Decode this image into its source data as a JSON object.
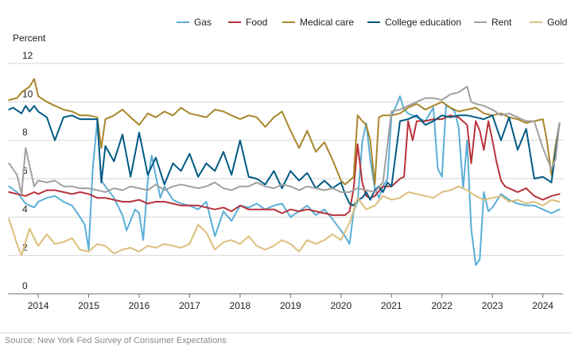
{
  "chart_data": {
    "type": "line",
    "ylabel": "Percent",
    "ylim": [
      0,
      12
    ],
    "yticks": [
      0,
      2,
      4,
      6,
      8,
      10,
      12
    ],
    "xlim": [
      2013.4,
      2024.4
    ],
    "xticks": [
      2014,
      2015,
      2016,
      2017,
      2018,
      2019,
      2020,
      2021,
      2022,
      2023,
      2024
    ],
    "xtick_labels": [
      "2014",
      "2015",
      "2016",
      "2017",
      "2018",
      "2019",
      "2020",
      "2021",
      "2022",
      "2023",
      "2024"
    ],
    "grid": "horizontal",
    "legend_position": "top-right",
    "source": "Source: New York Fed Survey of Consumer Expectations",
    "series": [
      {
        "name": "Gas",
        "color": "#5aaed6",
        "x": [
          2013.42,
          2013.58,
          2013.75,
          2013.92,
          2014.0,
          2014.17,
          2014.33,
          2014.5,
          2014.67,
          2014.83,
          2014.92,
          2015.0,
          2015.08,
          2015.17,
          2015.25,
          2015.33,
          2015.5,
          2015.67,
          2015.75,
          2015.92,
          2016.0,
          2016.08,
          2016.17,
          2016.25,
          2016.42,
          2016.5,
          2016.67,
          2016.83,
          2017.0,
          2017.17,
          2017.33,
          2017.5,
          2017.67,
          2017.83,
          2018.0,
          2018.17,
          2018.33,
          2018.5,
          2018.67,
          2018.83,
          2019.0,
          2019.17,
          2019.33,
          2019.5,
          2019.67,
          2019.83,
          2020.0,
          2020.08,
          2020.17,
          2020.25,
          2020.33,
          2020.42,
          2020.5,
          2020.58,
          2020.67,
          2020.75,
          2020.83,
          2020.92,
          2021.0,
          2021.08,
          2021.17,
          2021.25,
          2021.33,
          2021.5,
          2021.67,
          2021.83,
          2021.92,
          2022.0,
          2022.08,
          2022.17,
          2022.25,
          2022.33,
          2022.42,
          2022.5,
          2022.58,
          2022.67,
          2022.75,
          2022.83,
          2022.92,
          2023.0,
          2023.17,
          2023.33,
          2023.5,
          2023.67,
          2023.83,
          2024.0,
          2024.17,
          2024.33
        ],
        "values": [
          5.6,
          5.3,
          4.7,
          4.5,
          4.8,
          5.0,
          5.1,
          4.8,
          4.6,
          4.0,
          3.6,
          2.3,
          6.5,
          9.0,
          5.9,
          5.6,
          5.0,
          4.1,
          3.3,
          4.4,
          4.2,
          2.8,
          5.9,
          7.2,
          5.0,
          5.6,
          4.9,
          4.7,
          4.6,
          4.4,
          4.8,
          3.0,
          4.3,
          3.8,
          4.6,
          4.5,
          4.7,
          4.4,
          4.6,
          4.7,
          4.0,
          4.3,
          4.6,
          4.1,
          4.4,
          3.9,
          3.3,
          3.0,
          2.6,
          4.3,
          4.8,
          7.9,
          8.9,
          7.0,
          5.5,
          5.0,
          5.6,
          6.0,
          9.3,
          9.7,
          10.3,
          9.6,
          9.4,
          9.2,
          9.0,
          9.7,
          6.5,
          6.1,
          9.8,
          9.7,
          9.5,
          8.7,
          5.5,
          8.0,
          3.4,
          1.5,
          1.8,
          5.3,
          4.3,
          4.5,
          5.2,
          4.9,
          4.7,
          4.6,
          4.6,
          4.4,
          4.2,
          4.4
        ]
      },
      {
        "name": "Food",
        "color": "#b8323a",
        "x": [
          2013.42,
          2013.58,
          2013.75,
          2013.92,
          2014.0,
          2014.17,
          2014.33,
          2014.5,
          2014.67,
          2014.83,
          2015.0,
          2015.17,
          2015.33,
          2015.5,
          2015.67,
          2015.83,
          2016.0,
          2016.17,
          2016.33,
          2016.5,
          2016.67,
          2016.83,
          2017.0,
          2017.17,
          2017.33,
          2017.5,
          2017.67,
          2017.83,
          2018.0,
          2018.17,
          2018.33,
          2018.5,
          2018.67,
          2018.83,
          2019.0,
          2019.17,
          2019.33,
          2019.5,
          2019.67,
          2019.83,
          2020.0,
          2020.08,
          2020.17,
          2020.25,
          2020.33,
          2020.42,
          2020.5,
          2020.58,
          2020.67,
          2020.83,
          2021.0,
          2021.17,
          2021.25,
          2021.33,
          2021.42,
          2021.5,
          2021.67,
          2021.83,
          2022.0,
          2022.17,
          2022.33,
          2022.5,
          2022.58,
          2022.67,
          2022.75,
          2022.83,
          2022.92,
          2023.0,
          2023.08,
          2023.17,
          2023.25,
          2023.33,
          2023.5,
          2023.67,
          2023.83,
          2024.0,
          2024.17,
          2024.33
        ],
        "values": [
          5.3,
          5.2,
          5.1,
          5.3,
          5.2,
          5.4,
          5.4,
          5.3,
          5.2,
          5.3,
          5.2,
          5.0,
          5.0,
          4.9,
          4.8,
          4.8,
          4.9,
          4.7,
          4.8,
          4.8,
          4.7,
          4.6,
          4.6,
          4.6,
          4.5,
          4.4,
          4.5,
          4.3,
          4.6,
          4.4,
          4.4,
          4.4,
          4.4,
          4.2,
          4.4,
          4.3,
          4.4,
          4.3,
          4.2,
          4.1,
          4.1,
          4.1,
          4.3,
          5.5,
          7.8,
          5.8,
          5.1,
          5.0,
          5.1,
          5.6,
          5.6,
          6.0,
          6.1,
          9.0,
          8.0,
          9.0,
          9.0,
          9.1,
          9.1,
          9.3,
          9.2,
          8.8,
          6.8,
          9.0,
          8.5,
          7.5,
          9.0,
          8.0,
          6.9,
          5.9,
          5.6,
          5.5,
          5.3,
          5.5,
          5.1,
          4.9,
          5.1,
          5.2
        ]
      },
      {
        "name": "Medical care",
        "color": "#a8862b",
        "x": [
          2013.42,
          2013.58,
          2013.67,
          2013.83,
          2013.92,
          2014.0,
          2014.17,
          2014.33,
          2014.5,
          2014.67,
          2014.83,
          2015.0,
          2015.17,
          2015.25,
          2015.33,
          2015.5,
          2015.67,
          2015.83,
          2016.0,
          2016.17,
          2016.33,
          2016.5,
          2016.67,
          2016.83,
          2017.0,
          2017.17,
          2017.33,
          2017.5,
          2017.67,
          2017.83,
          2018.0,
          2018.17,
          2018.33,
          2018.5,
          2018.67,
          2018.83,
          2019.0,
          2019.17,
          2019.33,
          2019.5,
          2019.67,
          2019.83,
          2020.0,
          2020.08,
          2020.17,
          2020.25,
          2020.33,
          2020.42,
          2020.5,
          2020.58,
          2020.67,
          2020.75,
          2020.83,
          2021.0,
          2021.17,
          2021.33,
          2021.5,
          2021.67,
          2021.83,
          2022.0,
          2022.17,
          2022.33,
          2022.5,
          2022.67,
          2022.83,
          2023.0,
          2023.17,
          2023.33,
          2023.5,
          2023.67,
          2023.83,
          2024.0,
          2024.08,
          2024.17,
          2024.25,
          2024.33
        ],
        "values": [
          10.1,
          10.2,
          10.5,
          10.8,
          11.2,
          10.3,
          10.0,
          9.8,
          9.6,
          9.5,
          9.3,
          9.3,
          9.2,
          7.6,
          9.1,
          9.3,
          9.6,
          9.2,
          8.8,
          9.4,
          9.2,
          9.5,
          9.3,
          9.7,
          9.4,
          9.3,
          9.2,
          9.6,
          9.5,
          9.3,
          9.1,
          9.3,
          9.2,
          8.7,
          9.2,
          9.5,
          8.5,
          7.6,
          8.5,
          7.4,
          7.9,
          7.0,
          5.9,
          5.7,
          5.9,
          6.1,
          9.3,
          9.0,
          8.8,
          8.0,
          5.7,
          9.2,
          9.3,
          9.3,
          9.4,
          9.7,
          9.9,
          9.6,
          9.8,
          10.0,
          9.7,
          9.5,
          9.6,
          9.7,
          9.4,
          9.3,
          9.4,
          9.2,
          9.1,
          8.9,
          9.0,
          9.1,
          8.0,
          6.2,
          7.7,
          8.9
        ]
      },
      {
        "name": "College education",
        "color": "#005a84",
        "x": [
          2013.42,
          2013.5,
          2013.67,
          2013.75,
          2013.83,
          2013.92,
          2014.0,
          2014.17,
          2014.33,
          2014.5,
          2014.67,
          2014.83,
          2015.0,
          2015.17,
          2015.25,
          2015.33,
          2015.5,
          2015.67,
          2015.83,
          2016.0,
          2016.17,
          2016.33,
          2016.5,
          2016.67,
          2016.83,
          2017.0,
          2017.17,
          2017.33,
          2017.5,
          2017.67,
          2017.83,
          2018.0,
          2018.17,
          2018.33,
          2018.5,
          2018.67,
          2018.83,
          2019.0,
          2019.17,
          2019.33,
          2019.5,
          2019.67,
          2019.83,
          2020.0,
          2020.08,
          2020.17,
          2020.25,
          2020.33,
          2020.42,
          2020.5,
          2020.58,
          2020.67,
          2020.75,
          2020.83,
          2020.92,
          2021.0,
          2021.17,
          2021.33,
          2021.5,
          2021.67,
          2021.83,
          2022.0,
          2022.17,
          2022.33,
          2022.5,
          2022.67,
          2022.83,
          2023.0,
          2023.17,
          2023.33,
          2023.5,
          2023.67,
          2023.83,
          2024.0,
          2024.17,
          2024.33
        ],
        "values": [
          9.6,
          9.7,
          9.4,
          9.8,
          9.5,
          9.8,
          9.5,
          9.2,
          8.0,
          9.2,
          9.3,
          9.1,
          9.1,
          9.1,
          5.8,
          7.7,
          6.9,
          8.3,
          6.1,
          8.4,
          6.2,
          7.1,
          5.7,
          6.8,
          6.4,
          7.3,
          6.1,
          6.8,
          6.4,
          7.4,
          6.2,
          8.0,
          6.1,
          6.0,
          5.7,
          6.4,
          5.5,
          6.4,
          5.9,
          6.3,
          5.5,
          5.9,
          5.5,
          5.8,
          5.2,
          4.7,
          4.6,
          4.9,
          5.0,
          5.3,
          4.9,
          5.4,
          5.6,
          5.3,
          5.8,
          5.6,
          9.0,
          9.1,
          9.3,
          8.8,
          9.0,
          9.3,
          9.2,
          9.3,
          9.3,
          9.2,
          9.1,
          9.3,
          8.0,
          9.2,
          7.5,
          8.6,
          6.0,
          6.1,
          5.8,
          8.9
        ]
      },
      {
        "name": "Rent",
        "color": "#a0a0a0",
        "x": [
          2013.42,
          2013.58,
          2013.67,
          2013.75,
          2013.92,
          2014.0,
          2014.17,
          2014.33,
          2014.5,
          2014.67,
          2014.83,
          2015.0,
          2015.17,
          2015.33,
          2015.5,
          2015.67,
          2015.83,
          2016.0,
          2016.17,
          2016.33,
          2016.5,
          2016.67,
          2016.83,
          2017.0,
          2017.17,
          2017.33,
          2017.5,
          2017.67,
          2017.83,
          2018.0,
          2018.17,
          2018.33,
          2018.5,
          2018.67,
          2018.83,
          2019.0,
          2019.17,
          2019.33,
          2019.5,
          2019.67,
          2019.83,
          2020.0,
          2020.17,
          2020.33,
          2020.5,
          2020.67,
          2020.83,
          2021.0,
          2021.17,
          2021.33,
          2021.5,
          2021.67,
          2021.83,
          2022.0,
          2022.17,
          2022.33,
          2022.5,
          2022.58,
          2022.67,
          2022.83,
          2023.0,
          2023.17,
          2023.33,
          2023.5,
          2023.67,
          2023.83,
          2024.0,
          2024.17,
          2024.25,
          2024.33
        ],
        "values": [
          6.8,
          6.2,
          5.2,
          7.6,
          5.6,
          5.9,
          5.8,
          5.9,
          5.6,
          5.6,
          5.5,
          5.5,
          5.4,
          5.3,
          5.5,
          5.4,
          5.6,
          5.5,
          5.4,
          5.7,
          5.4,
          5.6,
          5.7,
          5.6,
          5.5,
          5.6,
          5.8,
          5.5,
          5.4,
          5.6,
          5.6,
          5.8,
          5.6,
          5.5,
          5.7,
          5.6,
          5.4,
          5.6,
          5.5,
          5.4,
          5.5,
          5.3,
          5.3,
          5.5,
          5.4,
          5.3,
          5.8,
          9.5,
          9.6,
          9.8,
          10.0,
          10.2,
          10.2,
          10.1,
          10.4,
          10.5,
          10.8,
          10.0,
          9.9,
          9.8,
          9.6,
          9.3,
          9.4,
          9.2,
          9.0,
          9.0,
          7.6,
          6.5,
          7.0,
          8.9
        ]
      },
      {
        "name": "Gold",
        "color": "#dcbf7c",
        "x": [
          2013.42,
          2013.58,
          2013.67,
          2013.83,
          2013.92,
          2014.0,
          2014.17,
          2014.33,
          2014.5,
          2014.67,
          2014.83,
          2015.0,
          2015.17,
          2015.33,
          2015.5,
          2015.67,
          2015.83,
          2016.0,
          2016.17,
          2016.33,
          2016.5,
          2016.67,
          2016.83,
          2017.0,
          2017.17,
          2017.33,
          2017.5,
          2017.67,
          2017.83,
          2018.0,
          2018.17,
          2018.33,
          2018.5,
          2018.67,
          2018.83,
          2019.0,
          2019.17,
          2019.33,
          2019.5,
          2019.67,
          2019.83,
          2020.0,
          2020.17,
          2020.33,
          2020.5,
          2020.67,
          2020.83,
          2021.0,
          2021.17,
          2021.33,
          2021.5,
          2021.67,
          2021.83,
          2022.0,
          2022.17,
          2022.33,
          2022.5,
          2022.67,
          2022.83,
          2023.0,
          2023.17,
          2023.33,
          2023.5,
          2023.67,
          2023.83,
          2024.0,
          2024.17,
          2024.33
        ],
        "values": [
          3.9,
          2.6,
          2.0,
          3.4,
          2.9,
          2.5,
          3.1,
          2.6,
          2.7,
          2.9,
          2.3,
          2.2,
          2.6,
          2.5,
          2.1,
          2.3,
          2.4,
          2.2,
          2.5,
          2.4,
          2.6,
          2.5,
          2.4,
          2.6,
          3.6,
          3.2,
          2.3,
          2.7,
          2.8,
          2.6,
          3.0,
          2.5,
          2.3,
          2.5,
          2.8,
          2.6,
          2.2,
          2.8,
          2.6,
          2.8,
          3.1,
          2.8,
          3.7,
          5.0,
          4.4,
          4.6,
          5.1,
          4.9,
          5.0,
          5.3,
          5.2,
          5.1,
          5.0,
          5.3,
          5.4,
          5.6,
          5.4,
          5.1,
          4.9,
          5.0,
          5.1,
          4.8,
          4.9,
          4.7,
          4.8,
          4.6,
          4.9,
          4.8
        ]
      }
    ]
  }
}
